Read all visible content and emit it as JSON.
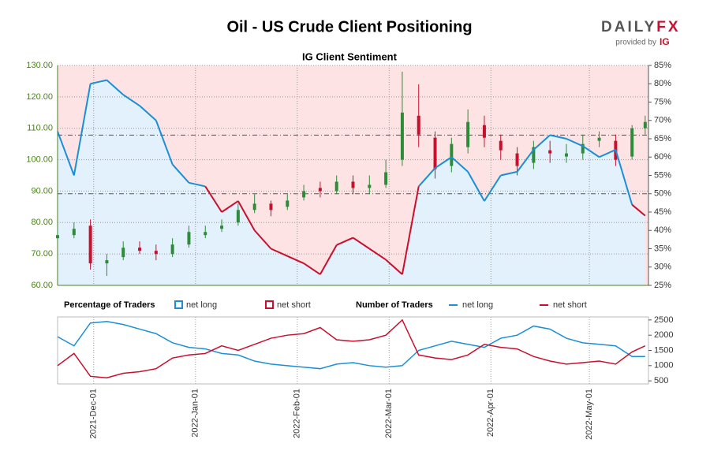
{
  "header": {
    "title": "Oil - US Crude Client Positioning",
    "logo_left": "DAILY",
    "logo_right": "FX",
    "provided_by": "provided by",
    "brand": "IG"
  },
  "chart_data": {
    "type": "sentiment",
    "subtitle": "IG Client Sentiment",
    "x": [
      "2021-11-20",
      "2021-11-25",
      "2021-11-30",
      "2021-12-05",
      "2021-12-10",
      "2021-12-15",
      "2021-12-20",
      "2021-12-25",
      "2021-12-30",
      "2022-01-04",
      "2022-01-09",
      "2022-01-14",
      "2022-01-19",
      "2022-01-24",
      "2022-01-29",
      "2022-02-03",
      "2022-02-08",
      "2022-02-13",
      "2022-02-18",
      "2022-02-23",
      "2022-02-28",
      "2022-03-05",
      "2022-03-10",
      "2022-03-15",
      "2022-03-20",
      "2022-03-25",
      "2022-03-30",
      "2022-04-04",
      "2022-04-09",
      "2022-04-14",
      "2022-04-19",
      "2022-04-24",
      "2022-04-29",
      "2022-05-04",
      "2022-05-09",
      "2022-05-14",
      "2022-05-18"
    ],
    "xlim": [
      "2021-11-20",
      "2022-05-19"
    ],
    "xticks": [
      {
        "value": "2021-12-01",
        "label": "2021-Dec-01"
      },
      {
        "value": "2022-01-01",
        "label": "2022-Jan-01"
      },
      {
        "value": "2022-02-01",
        "label": "2022-Feb-01"
      },
      {
        "value": "2022-03-01",
        "label": "2022-Mar-01"
      },
      {
        "value": "2022-04-01",
        "label": "2022-Apr-01"
      },
      {
        "value": "2022-05-01",
        "label": "2022-May-01"
      }
    ],
    "price": {
      "up_color": "#2e8b3a",
      "down_color": "#c8102e",
      "ylim": [
        60,
        130
      ],
      "yticks": [
        {
          "value": 60,
          "label": "60.00"
        },
        {
          "value": 70,
          "label": "70.00"
        },
        {
          "value": 80,
          "label": "80.00"
        },
        {
          "value": 90,
          "label": "90.00"
        },
        {
          "value": 100,
          "label": "100.00"
        },
        {
          "value": 110,
          "label": "110.00"
        },
        {
          "value": 120,
          "label": "120.00"
        },
        {
          "value": 130,
          "label": "130.00"
        }
      ],
      "open": [
        75,
        76,
        79,
        67,
        69,
        72,
        71,
        70,
        73,
        76,
        78,
        80,
        84,
        86,
        85,
        88,
        91,
        90,
        93,
        91,
        92,
        100,
        114,
        107,
        98,
        104,
        111,
        106,
        102,
        99,
        103,
        101,
        102,
        106,
        106,
        101,
        110
      ],
      "high": [
        78,
        80,
        81,
        70,
        74,
        74,
        73,
        75,
        79,
        79,
        81,
        86,
        89,
        87,
        89,
        92,
        93,
        95,
        95,
        95,
        100,
        128,
        124,
        109,
        107,
        116,
        114,
        108,
        104,
        106,
        106,
        105,
        108,
        109,
        108,
        111,
        114
      ],
      "low": [
        74,
        75,
        65,
        63,
        68,
        70,
        68,
        69,
        72,
        75,
        77,
        79,
        83,
        82,
        84,
        87,
        88,
        89,
        89,
        89,
        91,
        98,
        104,
        94,
        96,
        102,
        104,
        100,
        95,
        97,
        99,
        99,
        100,
        104,
        98,
        100,
        108
      ],
      "close": [
        76,
        78,
        67,
        68,
        72,
        71,
        70,
        73,
        77,
        77,
        79,
        84,
        86,
        84,
        87,
        90,
        90,
        93,
        91,
        92,
        96,
        115,
        108,
        97,
        105,
        112,
        107,
        103,
        98,
        104,
        102,
        102,
        105,
        107,
        100,
        110,
        112
      ]
    },
    "percent": {
      "legend_title": "Percentage of Traders",
      "ylim": [
        25,
        85
      ],
      "yticks": [
        {
          "value": 25,
          "label": "25%"
        },
        {
          "value": 30,
          "label": "30%"
        },
        {
          "value": 35,
          "label": "35%"
        },
        {
          "value": 40,
          "label": "40%"
        },
        {
          "value": 45,
          "label": "45%"
        },
        {
          "value": 50,
          "label": "50%"
        },
        {
          "value": 55,
          "label": "55%"
        },
        {
          "value": 60,
          "label": "60%"
        },
        {
          "value": 65,
          "label": "65%"
        },
        {
          "value": 70,
          "label": "70%"
        },
        {
          "value": 75,
          "label": "75%"
        },
        {
          "value": 80,
          "label": "80%"
        },
        {
          "value": 85,
          "label": "85%"
        }
      ],
      "reference_lines": [
        50,
        66
      ],
      "series": [
        {
          "name": "net long",
          "color": "#1a8fd6",
          "values": [
            67,
            55,
            80,
            81,
            77,
            74,
            70,
            58,
            53,
            52,
            45,
            48,
            40,
            35,
            33,
            31,
            28,
            36,
            38,
            35,
            32,
            28,
            52,
            57,
            60,
            56,
            48,
            55,
            56,
            62,
            66,
            65,
            63,
            60,
            62,
            47,
            44
          ]
        },
        {
          "name": "net short",
          "color": "#c8102e"
        }
      ]
    },
    "count": {
      "legend_title": "Number of Traders",
      "ylim": [
        400,
        2600
      ],
      "yticks": [
        500,
        1000,
        1500,
        2000,
        2500
      ],
      "series": [
        {
          "name": "net long",
          "color": "#1a8fd6",
          "values": [
            1950,
            1650,
            2400,
            2450,
            2350,
            2200,
            2050,
            1750,
            1600,
            1550,
            1400,
            1350,
            1150,
            1050,
            1000,
            950,
            900,
            1050,
            1100,
            1000,
            950,
            1000,
            1500,
            1650,
            1800,
            1700,
            1600,
            1900,
            2000,
            2300,
            2200,
            1900,
            1750,
            1700,
            1650,
            1300,
            1300
          ]
        },
        {
          "name": "net short",
          "color": "#c8102e",
          "values": [
            1000,
            1400,
            650,
            600,
            750,
            800,
            900,
            1250,
            1350,
            1400,
            1650,
            1500,
            1700,
            1900,
            2000,
            2050,
            2250,
            1850,
            1800,
            1850,
            2000,
            2500,
            1350,
            1250,
            1200,
            1350,
            1700,
            1600,
            1550,
            1300,
            1150,
            1050,
            1100,
            1150,
            1050,
            1450,
            1650
          ]
        }
      ]
    }
  }
}
